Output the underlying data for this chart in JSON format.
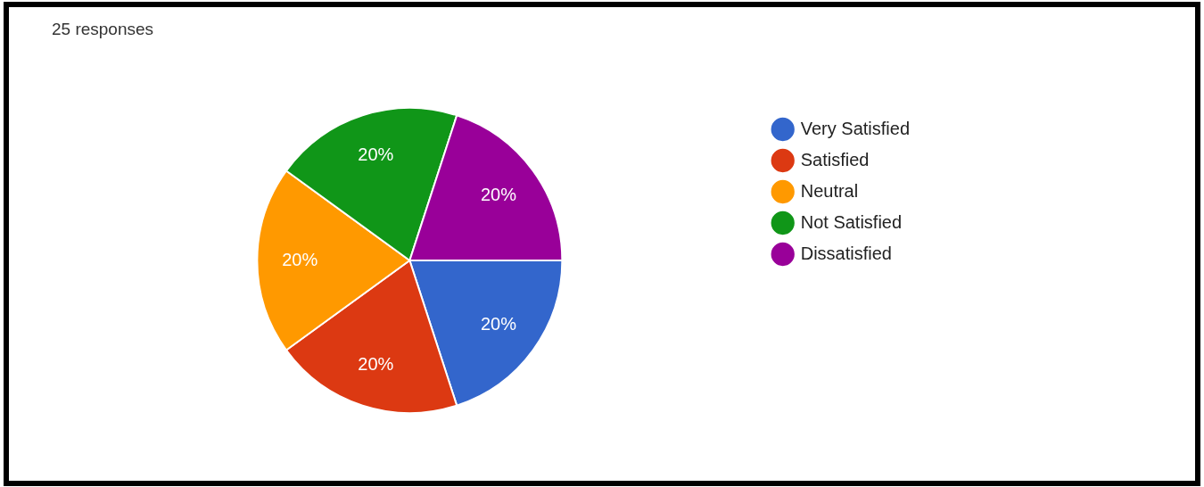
{
  "chart_data": {
    "type": "pie",
    "title": "25 responses",
    "categories": [
      "Very Satisfied",
      "Satisfied",
      "Neutral",
      "Not Satisfied",
      "Dissatisfied"
    ],
    "values": [
      20,
      20,
      20,
      20,
      20
    ],
    "colors": [
      "#3366cc",
      "#dc3912",
      "#ff9900",
      "#109618",
      "#990099"
    ],
    "value_labels": [
      "20%",
      "20%",
      "20%",
      "20%",
      "20%"
    ],
    "legend": "right"
  }
}
